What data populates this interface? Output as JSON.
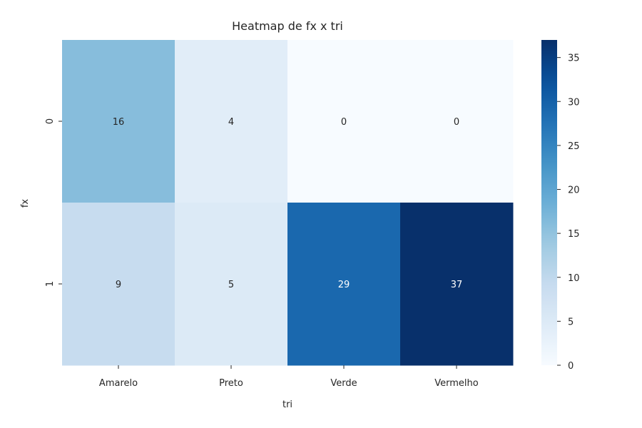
{
  "chart_data": {
    "type": "heatmap",
    "title": "Heatmap de fx x tri",
    "xlabel": "tri",
    "ylabel": "fx",
    "x_categories": [
      "Amarelo",
      "Preto",
      "Verde",
      "Vermelho"
    ],
    "y_categories": [
      "0",
      "1"
    ],
    "values": [
      [
        16,
        4,
        0,
        0
      ],
      [
        9,
        5,
        29,
        37
      ]
    ],
    "colorbar": {
      "ticks": [
        "0",
        "5",
        "10",
        "15",
        "20",
        "25",
        "30",
        "35"
      ],
      "range": [
        0,
        37
      ]
    },
    "colormap": "Blues",
    "annotations": true
  }
}
